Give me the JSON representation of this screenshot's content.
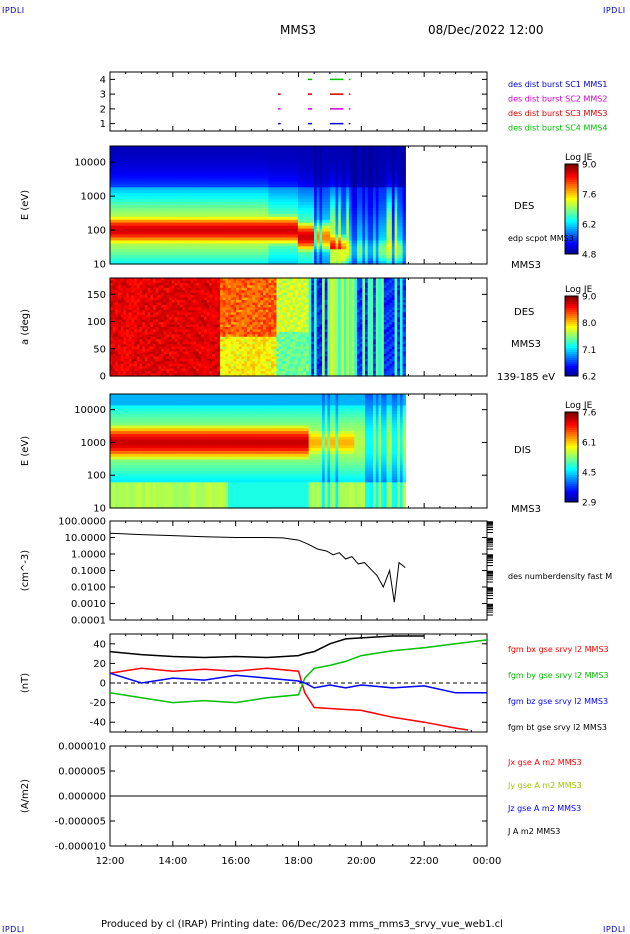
{
  "corners": {
    "top_left": "IPDLI",
    "top_right": "IPDLI",
    "bottom_left": "IPDLI",
    "bottom_right": "IPDLI"
  },
  "header": {
    "spacecraft": "MMS3",
    "date": "08/Dec/2022 12:00"
  },
  "footer": {
    "text": "Produced by cl (IRAP)   Printing date: 06/Dec/2023   mms_mms3_srvy_vue_web1.cl"
  },
  "time_axis": {
    "ticks": [
      "12:00",
      "14:00",
      "16:00",
      "18:00",
      "20:00",
      "22:00",
      "00:00"
    ]
  },
  "chart_data": [
    {
      "type": "scatter",
      "id": "burst",
      "title": "",
      "xlabel": "",
      "ylabel": "",
      "ytick_labels": [
        "4",
        "3",
        "2",
        "1"
      ],
      "ylim": [
        0.5,
        4.5
      ],
      "legend": [
        {
          "label": "des dist burst SC1 MMS1",
          "color": "#0000c8"
        },
        {
          "label": "des dist burst SC2 MMS2",
          "color": "#d000d0"
        },
        {
          "label": "des dist burst SC3 MMS3",
          "color": "#d00000"
        },
        {
          "label": "des dist burst SC4 MMS4",
          "color": "#00c000"
        }
      ],
      "series": [
        {
          "name": "des dist burst SC4 MMS4",
          "y": 4,
          "segments": [
            [
              18.3,
              18.4
            ],
            [
              19.0,
              19.4
            ],
            [
              19.6,
              19.62
            ]
          ]
        },
        {
          "name": "des dist burst SC3 MMS3",
          "y": 3,
          "segments": [
            [
              17.35,
              17.4
            ],
            [
              18.3,
              18.4
            ],
            [
              19.0,
              19.4
            ],
            [
              19.6,
              19.62
            ]
          ]
        },
        {
          "name": "des dist burst SC2 MMS2",
          "y": 2,
          "segments": [
            [
              17.35,
              17.4
            ],
            [
              18.3,
              18.4
            ],
            [
              19.0,
              19.4
            ],
            [
              19.6,
              19.62
            ]
          ]
        },
        {
          "name": "des dist burst SC1 MMS1",
          "y": 1,
          "segments": [
            [
              17.35,
              17.4
            ],
            [
              18.3,
              18.4
            ],
            [
              19.0,
              19.4
            ],
            [
              19.6,
              19.62
            ]
          ]
        }
      ]
    },
    {
      "type": "heatmap",
      "id": "des_energy",
      "ylabel": "E (eV)",
      "ytick_labels": [
        "10000",
        "1000",
        "100",
        "10"
      ],
      "ylim": [
        10,
        30000
      ],
      "yscale": "log",
      "x_range_hours": [
        12.0,
        21.4
      ],
      "label": "DES",
      "label2": "edp scpot MMS3",
      "label3": "MMS3",
      "colorbar": {
        "title": "Log JE",
        "ticks": [
          "9.0",
          "7.6",
          "6.2",
          "4.8"
        ],
        "range": [
          4.8,
          9.0
        ]
      }
    },
    {
      "type": "heatmap",
      "id": "des_pitch",
      "ylabel": "a (deg)",
      "ytick_labels": [
        "150",
        "100",
        "50",
        "0"
      ],
      "ylim": [
        0,
        180
      ],
      "x_range_hours": [
        12.0,
        21.4
      ],
      "label": "DES",
      "label2": "MMS3",
      "label3": "139-185 eV",
      "colorbar": {
        "title": "Log JE",
        "ticks": [
          "9.0",
          "8.0",
          "7.1",
          "6.2"
        ],
        "range": [
          6.2,
          9.0
        ]
      }
    },
    {
      "type": "heatmap",
      "id": "dis_energy",
      "ylabel": "E (eV)",
      "ytick_labels": [
        "10000",
        "1000",
        "100",
        "10"
      ],
      "ylim": [
        10,
        30000
      ],
      "yscale": "log",
      "x_range_hours": [
        12.0,
        21.4
      ],
      "label": "DIS",
      "label2": "MMS3",
      "colorbar": {
        "title": "Log JE",
        "ticks": [
          "7.6",
          "6.1",
          "4.5",
          "2.9"
        ],
        "range": [
          2.9,
          7.6
        ]
      }
    },
    {
      "type": "line",
      "id": "density",
      "ylabel": "(cm^-3)",
      "yscale": "log",
      "ylim": [
        0.001,
        100
      ],
      "ytick_labels": [
        "100.0000",
        "10.0000",
        "1.0000",
        "0.1000",
        "0.0100",
        "0.0010",
        "0.0001"
      ],
      "series": [
        {
          "name": "des numberdensity fast M",
          "color": "#000000",
          "x": [
            12.0,
            13.0,
            14.0,
            15.0,
            16.0,
            17.0,
            17.5,
            18.0,
            18.3,
            18.6,
            18.9,
            19.1,
            19.3,
            19.5,
            19.7,
            19.9,
            20.1,
            20.3,
            20.5,
            20.7,
            20.9,
            21.05,
            21.2,
            21.4
          ],
          "y": [
            18,
            15,
            13,
            11,
            10,
            10,
            9.5,
            7,
            4,
            2,
            1.5,
            0.9,
            1.2,
            0.5,
            0.7,
            0.25,
            0.3,
            0.12,
            0.05,
            0.01,
            0.1,
            0.0012,
            0.3,
            0.15
          ]
        }
      ]
    },
    {
      "type": "line",
      "id": "bfield",
      "ylabel": "(nT)",
      "ylim": [
        -50,
        50
      ],
      "ytick_labels": [
        "40",
        "20",
        "0",
        "-20",
        "-40"
      ],
      "series": [
        {
          "name": "fgm bx gse srvy l2 MMS3",
          "color": "#ff0000",
          "x": [
            12.0,
            13.0,
            14.0,
            15.0,
            16.0,
            17.0,
            18.0,
            18.2,
            18.5,
            19.0,
            19.5,
            20.0,
            21.0,
            22.0,
            23.0,
            23.4
          ],
          "y": [
            10,
            15,
            12,
            14,
            12,
            15,
            12,
            -10,
            -25,
            -26,
            -27,
            -28,
            -35,
            -40,
            -46,
            -48
          ]
        },
        {
          "name": "fgm by gse srvy l2 MMS3",
          "color": "#00c000",
          "x": [
            12.0,
            13.0,
            14.0,
            15.0,
            16.0,
            17.0,
            18.0,
            18.2,
            18.5,
            19.0,
            19.5,
            20.0,
            21.0,
            22.0,
            23.0,
            24.0
          ],
          "y": [
            -10,
            -15,
            -20,
            -18,
            -20,
            -15,
            -12,
            5,
            15,
            18,
            22,
            28,
            33,
            36,
            40,
            44
          ]
        },
        {
          "name": "fgm bz gse srvy l2 MMS3",
          "color": "#0000ff",
          "x": [
            12.0,
            13.0,
            14.0,
            15.0,
            16.0,
            17.0,
            18.0,
            18.2,
            18.5,
            19.0,
            19.5,
            20.0,
            21.0,
            22.0,
            23.0,
            24.0
          ],
          "y": [
            10,
            0,
            5,
            3,
            8,
            5,
            2,
            0,
            -5,
            -2,
            -5,
            -2,
            -5,
            -3,
            -10,
            -10
          ]
        },
        {
          "name": "fgm bt gse srvy l2 MMS3",
          "color": "#000000",
          "x": [
            12.0,
            13.0,
            14.0,
            15.0,
            16.0,
            17.0,
            18.0,
            18.2,
            18.5,
            19.0,
            19.5,
            20.0,
            21.0,
            22.0
          ],
          "y": [
            32,
            29,
            27,
            26,
            27,
            26,
            28,
            30,
            32,
            40,
            45,
            46,
            48,
            48
          ]
        }
      ]
    },
    {
      "type": "line",
      "id": "current",
      "ylabel": "(A/m2)",
      "ylim": [
        -1e-05,
        1e-05
      ],
      "ytick_labels": [
        "0.000010",
        "0.000005",
        "0.000000",
        "-0.000005",
        "-0.000010"
      ],
      "series": [
        {
          "name": "Jx gse A m2 MMS3",
          "color": "#ff0000",
          "x": [
            12.0,
            24.0
          ],
          "y": [
            0,
            0
          ]
        },
        {
          "name": "Jy gse A m2 MMS3",
          "color": "#a0c800",
          "x": [
            12.0,
            24.0
          ],
          "y": [
            0,
            0
          ]
        },
        {
          "name": "Jz gse A m2 MMS3",
          "color": "#0000ff",
          "x": [
            12.0,
            24.0
          ],
          "y": [
            0,
            0
          ]
        },
        {
          "name": "J A m2 MMS3",
          "color": "#000000",
          "x": [
            12.0,
            24.0
          ],
          "y": [
            0,
            0
          ]
        }
      ]
    }
  ]
}
